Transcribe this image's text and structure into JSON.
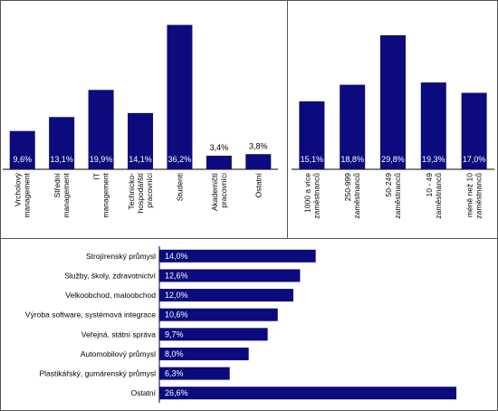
{
  "colors": {
    "bar": "#0b0b7d",
    "axis": "#000000"
  },
  "chart_data": [
    {
      "type": "bar",
      "categories": [
        "Vrcholový\nmanagement",
        "Střední\nmanagement",
        "IT\nmanagement",
        "Technicko-\nhospodářští\npracovníci",
        "Studenti",
        "Akademičtí\npracovníci",
        "Ostatní"
      ],
      "values": [
        9.6,
        13.1,
        19.9,
        14.1,
        36.2,
        3.4,
        3.8
      ],
      "labels": [
        "9,6%",
        "13,1%",
        "19,9%",
        "14,1%",
        "36,2%",
        "3,4%",
        "3,8%"
      ],
      "ylim": [
        0,
        37
      ]
    },
    {
      "type": "bar",
      "categories": [
        "1000 a více\nzaměstnanců",
        "250-999\nzaměstnanců",
        "50-249\nzaměstnanců",
        "10 - 49\nzaměstnanců",
        "méně než 10\nzaměstnanců"
      ],
      "values": [
        15.1,
        18.8,
        29.8,
        19.3,
        17.0
      ],
      "labels": [
        "15,1%",
        "18,8%",
        "29,8%",
        "19,3%",
        "17,0%"
      ],
      "ylim": [
        0,
        31
      ]
    },
    {
      "type": "bar",
      "orientation": "horizontal",
      "categories": [
        "Strojírenský průmysl",
        "Služby, školy, zdravotnictví",
        "Velkoobchod, maloobchod",
        "Výroba software, systémová integrace",
        "Veřejná, státní správa",
        "Automobilový průmysl",
        "Plastikářský, gumárenský průmysl",
        "Ostatní"
      ],
      "values": [
        14.0,
        12.6,
        12.0,
        10.6,
        9.7,
        8.0,
        6.3,
        26.6
      ],
      "labels": [
        "14,0%",
        "12,6%",
        "12,0%",
        "10,6%",
        "9,7%",
        "8,0%",
        "6,3%",
        "26,6%"
      ],
      "xlim": [
        0,
        27
      ]
    }
  ]
}
